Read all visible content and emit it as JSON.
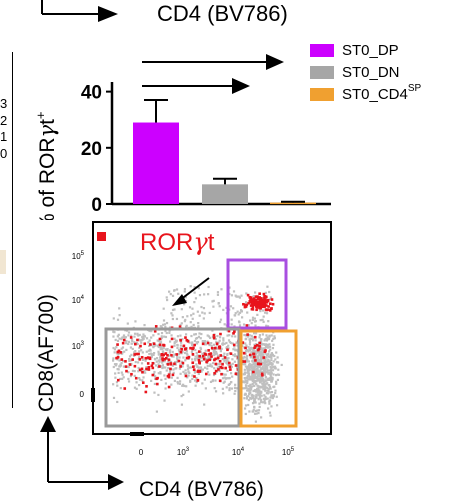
{
  "top_xlabel": "CD4 (BV786)",
  "left_fragment_ticks": [
    "3",
    "2",
    "1",
    "0"
  ],
  "colors": {
    "dp": "#cc00ff",
    "dn": "#a6a6a6",
    "cd4sp": "#f0a030",
    "roryt": "#e8141c",
    "background_cells": "#bfbfbf"
  },
  "legend": {
    "dp": "ST0_DP",
    "dn": "ST0_DN",
    "cd4sp_main": "ST0_CD4",
    "cd4sp_sup": "SP"
  },
  "chart_data": [
    {
      "type": "bar",
      "categories": [
        "ST0_DP",
        "ST0_DN",
        "ST0_CD4SP"
      ],
      "series": [
        {
          "values": [
            29,
            7,
            0.5
          ],
          "errors": [
            8,
            2,
            0.3
          ]
        }
      ],
      "ylabel_main": "% of ROR",
      "ylabel_greek": "γ",
      "ylabel_tail": "t",
      "ylabel_sup": "+",
      "yticks": [
        "0",
        "20",
        "40"
      ],
      "ylim": [
        0,
        42
      ]
    },
    {
      "type": "scatter",
      "overlay_label_main": "ROR",
      "overlay_label_greek": "γ",
      "overlay_label_tail": "t",
      "ylabel": "CD8(AF700)",
      "xlabel": "CD4 (BV786)",
      "xticks": [
        "0",
        "10",
        "10",
        "10"
      ],
      "xtick_sup": [
        "",
        "3",
        "4",
        "5"
      ],
      "yticks": [
        "0",
        "10",
        "10",
        "10"
      ],
      "ytick_sup": [
        "",
        "3",
        "4",
        "5"
      ],
      "gates": [
        "ST0_DP",
        "ST0_DN",
        "ST0_CD4SP"
      ]
    }
  ]
}
